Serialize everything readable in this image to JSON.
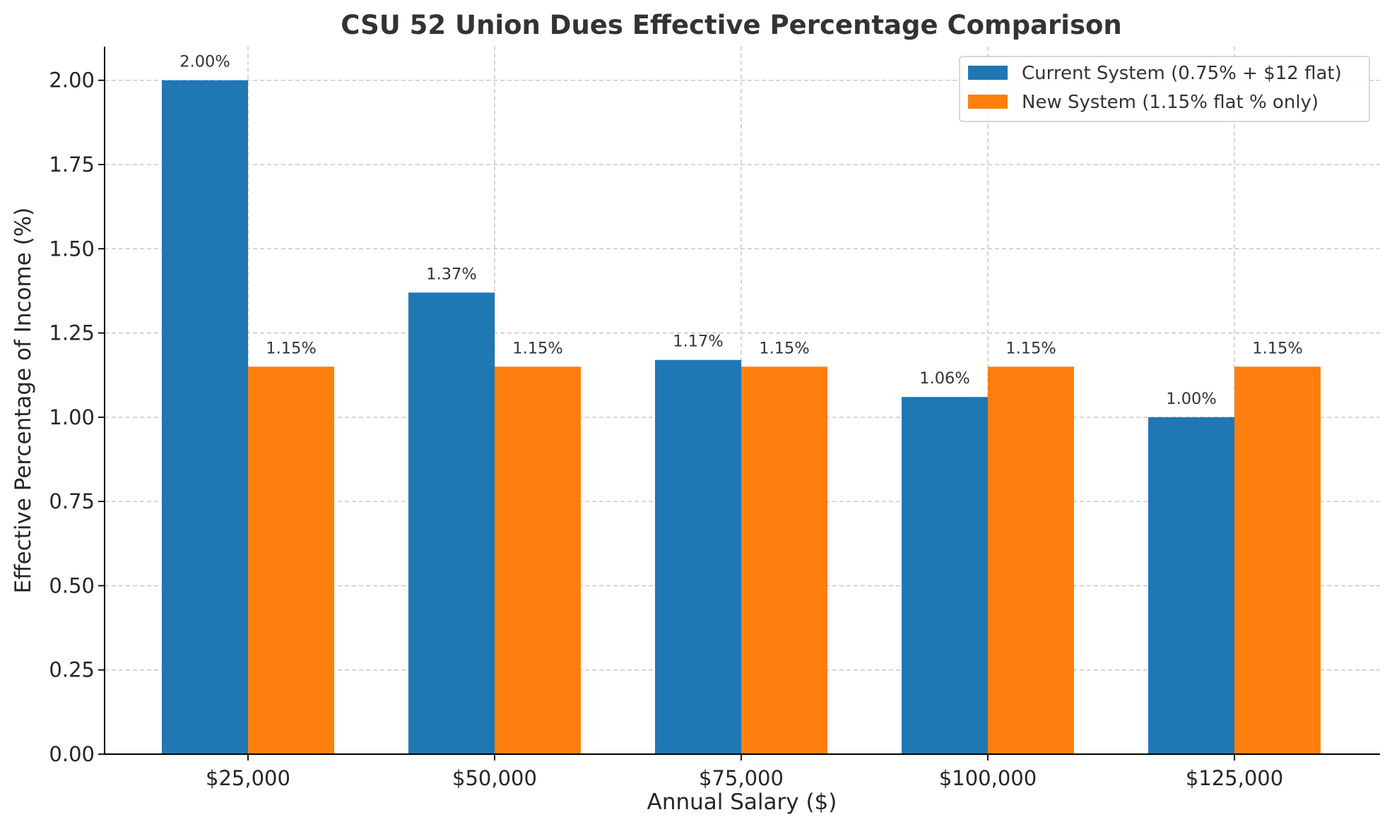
{
  "chart_data": {
    "type": "bar",
    "title": "CSU 52 Union Dues Effective Percentage Comparison",
    "xlabel": "Annual Salary ($)",
    "ylabel": "Effective Percentage of Income (%)",
    "categories": [
      "$25,000",
      "$50,000",
      "$75,000",
      "$100,000",
      "$125,000"
    ],
    "ylim": [
      0,
      2.1
    ],
    "yticks": [
      "0.00",
      "0.25",
      "0.50",
      "0.75",
      "1.00",
      "1.25",
      "1.50",
      "1.75",
      "2.00"
    ],
    "grid": true,
    "legend_position": "top-right",
    "series": [
      {
        "name": "Current System (0.75% + $12 flat)",
        "color": "#1f77b4",
        "values": [
          2.0,
          1.37,
          1.17,
          1.06,
          1.0
        ],
        "labels": [
          "2.00%",
          "1.37%",
          "1.17%",
          "1.06%",
          "1.00%"
        ]
      },
      {
        "name": "New System (1.15% flat % only)",
        "color": "#ff7f0e",
        "values": [
          1.15,
          1.15,
          1.15,
          1.15,
          1.15
        ],
        "labels": [
          "1.15%",
          "1.15%",
          "1.15%",
          "1.15%",
          "1.15%"
        ]
      }
    ]
  }
}
